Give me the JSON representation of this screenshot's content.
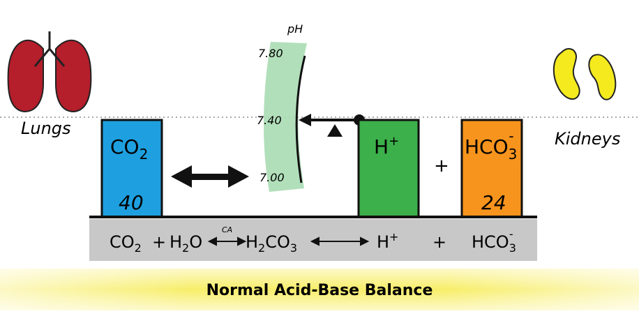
{
  "title": "Normal Acid-Base Balance",
  "organs": {
    "lungs": "Lungs",
    "kidneys": "Kidneys"
  },
  "ph_scale": {
    "label": "pH",
    "ticks": [
      "7.80",
      "7.40",
      "7.00"
    ]
  },
  "boxes": [
    {
      "formula": {
        "base": "CO",
        "sub": "2"
      },
      "value": 40
    },
    {
      "formula": {
        "base": "H",
        "sup": "+"
      }
    },
    {
      "formula": {
        "base": "HCO",
        "sub": "3",
        "sup": "-"
      },
      "value": 24
    }
  ],
  "plus_sign": "+",
  "equation": {
    "co2": {
      "base": "CO",
      "sub": "2"
    },
    "plus1": "+",
    "h2o": {
      "base1": "H",
      "sub": "2",
      "base2": "O"
    },
    "enzyme": "CA",
    "h2co3": {
      "base1": "H",
      "sub1": "2",
      "base2": "CO",
      "sub2": "3"
    },
    "h": {
      "base": "H",
      "sup": "+"
    },
    "plus2": "+",
    "hco3": {
      "base": "HCO",
      "sub": "3",
      "sup": "-"
    }
  }
}
